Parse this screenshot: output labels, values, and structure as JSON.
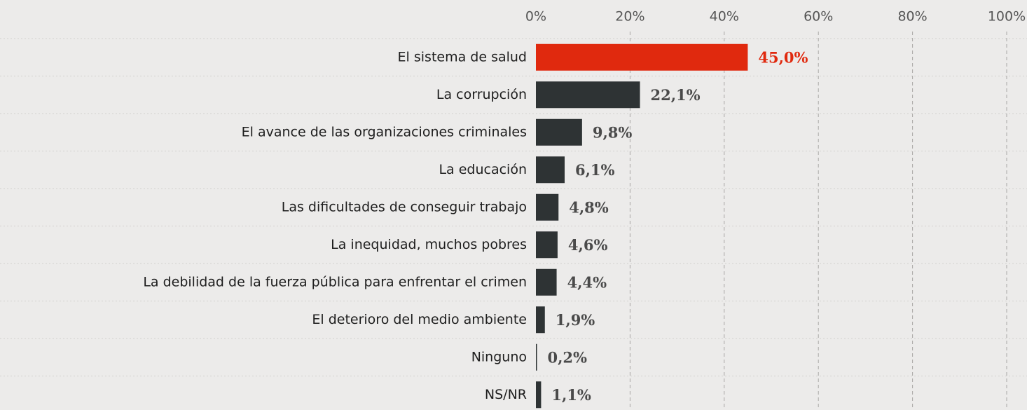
{
  "chart_data": {
    "type": "bar",
    "orientation": "horizontal",
    "categories": [
      "El sistema de salud",
      "La corrupción",
      "El avance de las organizaciones criminales",
      "La educación",
      "Las dificultades de conseguir trabajo",
      "La inequidad, muchos pobres",
      "La debilidad de la fuerza pública para enfrentar el crimen",
      "El deterioro del medio ambiente",
      "Ninguno",
      "NS/NR"
    ],
    "values": [
      45.0,
      22.1,
      9.8,
      6.1,
      4.8,
      4.6,
      4.4,
      1.9,
      0.2,
      1.1
    ],
    "value_labels": [
      "45,0%",
      "22,1%",
      "9,8%",
      "6,1%",
      "4,8%",
      "4,6%",
      "4,4%",
      "1,9%",
      "0,2%",
      "1,1%"
    ],
    "colors": [
      "#e0290e",
      "#2e3334",
      "#2e3334",
      "#2e3334",
      "#2e3334",
      "#2e3334",
      "#2e3334",
      "#2e3334",
      "#2e3334",
      "#2e3334"
    ],
    "xlim": [
      0,
      100
    ],
    "xticks": [
      {
        "value": 0,
        "label": "0%"
      },
      {
        "value": 20,
        "label": "20%"
      },
      {
        "value": 40,
        "label": "40%"
      },
      {
        "value": 60,
        "label": "60%"
      },
      {
        "value": 80,
        "label": "80%"
      },
      {
        "value": 100,
        "label": "100%"
      }
    ],
    "grid": true
  }
}
